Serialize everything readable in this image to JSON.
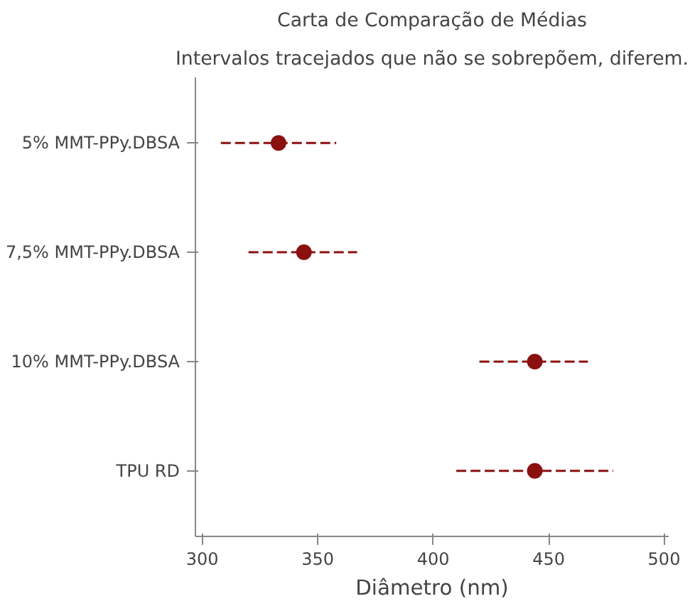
{
  "chart_data": {
    "type": "scatter",
    "orientation": "horizontal",
    "title": "Carta de Comparação de Médias",
    "subtitle": "Intervalos tracejados que não se sobrepõem, diferem.",
    "xlabel": "Diâmetro (nm)",
    "categories": [
      "5% MMT-PPy.DBSA",
      "7,5% MMT-PPy.DBSA",
      "10% MMT-PPy.DBSA",
      "TPU RD"
    ],
    "values": [
      333,
      344,
      444,
      444
    ],
    "errors": [
      [
        308,
        358
      ],
      [
        320,
        367
      ],
      [
        420,
        467
      ],
      [
        410,
        478
      ]
    ],
    "color": "#8b1010",
    "marker": "circle",
    "line_style": "dashed",
    "xlim": [
      297,
      502
    ],
    "xticks": [
      300,
      350,
      400,
      450,
      500
    ],
    "grid": false
  }
}
